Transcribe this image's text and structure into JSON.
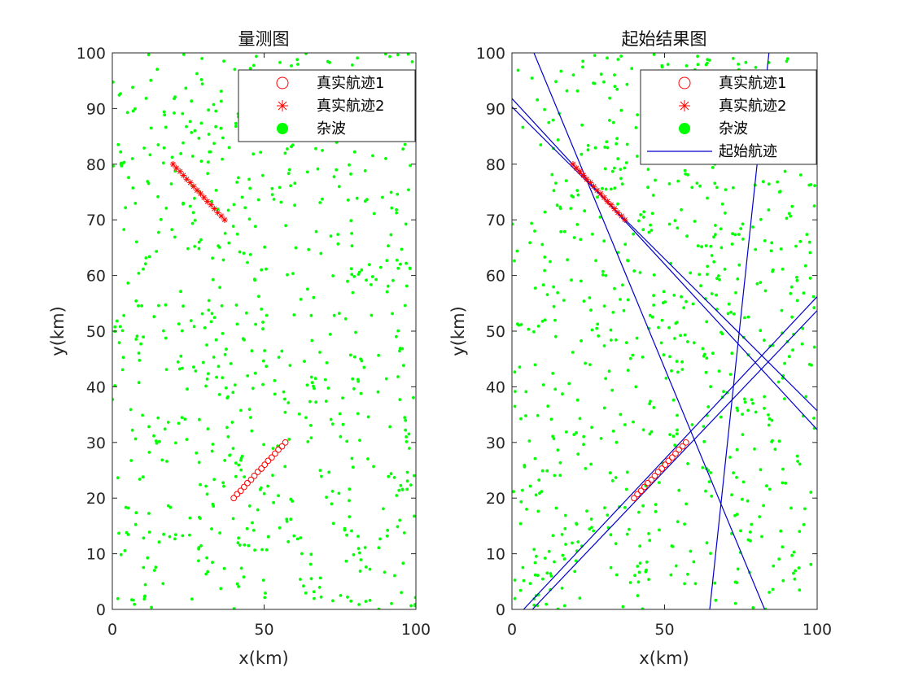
{
  "chart_data": [
    {
      "type": "scatter",
      "title": "量测图",
      "xlabel": "x(km)",
      "ylabel": "y(km)",
      "xlim": [
        0,
        100
      ],
      "ylim": [
        0,
        100
      ],
      "xticks": [
        0,
        50,
        100
      ],
      "yticks": [
        0,
        10,
        20,
        30,
        40,
        50,
        60,
        70,
        80,
        90,
        100
      ],
      "grid": false,
      "legend_position": "top-right",
      "series": [
        {
          "name": "真实航迹1",
          "marker": "circle",
          "color": "#ff0000",
          "x": [
            40,
            41.1,
            42.3,
            43.4,
            44.5,
            45.7,
            46.8,
            47.9,
            49.1,
            50.2,
            51.3,
            52.5,
            53.6,
            54.7,
            55.9,
            57
          ],
          "y": [
            20,
            20.7,
            21.3,
            22.0,
            22.7,
            23.3,
            24.0,
            24.7,
            25.3,
            26.0,
            26.7,
            27.3,
            28.0,
            28.7,
            29.3,
            30
          ]
        },
        {
          "name": "真实航迹2",
          "marker": "asterisk",
          "color": "#ff0000",
          "x": [
            20,
            21.1,
            22.3,
            23.4,
            24.5,
            25.7,
            26.8,
            27.9,
            29.1,
            30.2,
            31.3,
            32.5,
            33.6,
            34.7,
            35.9,
            37
          ],
          "y": [
            80,
            79.3,
            78.7,
            78.0,
            77.3,
            76.7,
            76.0,
            75.3,
            74.7,
            74.0,
            73.3,
            72.7,
            72.0,
            71.3,
            70.7,
            70
          ]
        },
        {
          "name": "杂波",
          "marker": "dot",
          "color": "#00ff00",
          "count": 700,
          "seed": 20231
        }
      ]
    },
    {
      "type": "scatter",
      "title": "起始结果图",
      "xlabel": "x(km)",
      "ylabel": "y(km)",
      "xlim": [
        0,
        100
      ],
      "ylim": [
        0,
        100
      ],
      "xticks": [
        0,
        50,
        100
      ],
      "yticks": [
        0,
        10,
        20,
        30,
        40,
        50,
        60,
        70,
        80,
        90,
        100
      ],
      "grid": false,
      "legend_position": "top-right",
      "series": [
        {
          "name": "真实航迹1",
          "marker": "circle",
          "color": "#ff0000",
          "x": [
            40,
            41.1,
            42.3,
            43.4,
            44.5,
            45.7,
            46.8,
            47.9,
            49.1,
            50.2,
            51.3,
            52.5,
            53.6,
            54.7,
            55.9,
            57
          ],
          "y": [
            20,
            20.7,
            21.3,
            22.0,
            22.7,
            23.3,
            24.0,
            24.7,
            25.3,
            26.0,
            26.7,
            27.3,
            28.0,
            28.7,
            29.3,
            30
          ]
        },
        {
          "name": "真实航迹2",
          "marker": "asterisk",
          "color": "#ff0000",
          "x": [
            20,
            21.1,
            22.3,
            23.4,
            24.5,
            25.7,
            26.8,
            27.9,
            29.1,
            30.2,
            31.3,
            32.5,
            33.6,
            34.7,
            35.9,
            37
          ],
          "y": [
            80,
            79.3,
            78.7,
            78.0,
            77.3,
            76.7,
            76.0,
            75.3,
            74.7,
            74.0,
            73.3,
            72.7,
            72.0,
            71.3,
            70.7,
            70
          ]
        },
        {
          "name": "杂波",
          "marker": "dot",
          "color": "#00ff00",
          "count": 700,
          "seed": 77123
        }
      ],
      "lines": {
        "name": "起始航迹",
        "color": "#0000cc",
        "segments": [
          {
            "x": [
              0,
              100
            ],
            "y": [
              91.8,
              32.3
            ]
          },
          {
            "x": [
              0,
              100
            ],
            "y": [
              90.3,
              35.7
            ]
          },
          {
            "x": [
              7.2,
              82.8
            ],
            "y": [
              100,
              0
            ]
          },
          {
            "x": [
              3.8,
              100
            ],
            "y": [
              0,
              56.2
            ]
          },
          {
            "x": [
              6.7,
              100
            ],
            "y": [
              0,
              53.7
            ]
          },
          {
            "x": [
              64.8,
              84.2
            ],
            "y": [
              0,
              100
            ]
          }
        ]
      }
    }
  ]
}
